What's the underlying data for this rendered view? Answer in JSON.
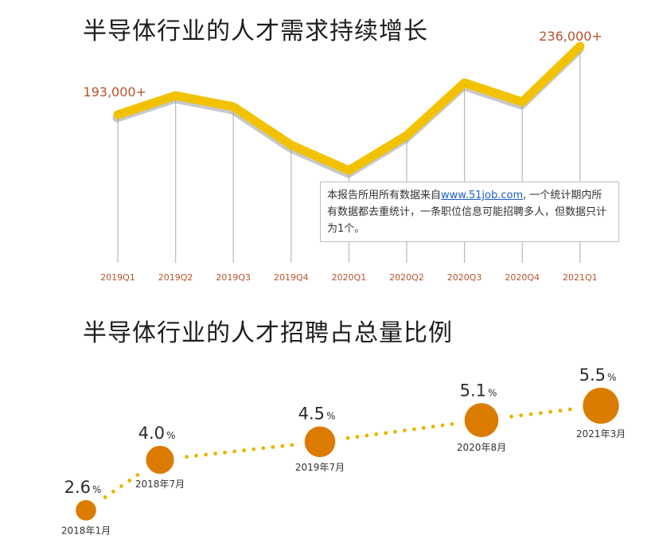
{
  "colors": {
    "line": "#f2c200",
    "line_shadow": "#9a9a9a",
    "label": "#b5532b",
    "dot": "#e8b500",
    "bubble": "#db7c00",
    "axis": "#bdbdbd"
  },
  "chart_data": [
    {
      "type": "line",
      "title": "半导体行业的人才需求持续增长",
      "categories": [
        "2019Q1",
        "2019Q2",
        "2019Q3",
        "2019Q4",
        "2020Q1",
        "2020Q2",
        "2020Q3",
        "2020Q4",
        "2021Q1"
      ],
      "values": [
        193000,
        205000,
        198000,
        174000,
        158000,
        180000,
        213000,
        201000,
        236000
      ],
      "ylim": [
        150000,
        240000
      ],
      "data_labels": {
        "first": "193,000+",
        "last": "236,000+"
      },
      "annotation": {
        "before": "本报告所用所有数据来自",
        "link": "www.51job.com",
        "after": ", 一个统计期内所有数据都去重统计，一条职位信息可能招聘多人，但数据只计为1个。"
      }
    },
    {
      "type": "scatter",
      "title": "半导体行业的人才招聘占总量比例",
      "points": [
        {
          "value": 2.6,
          "value_label": "2.6",
          "unit": "%",
          "date": "2018年1月"
        },
        {
          "value": 4.0,
          "value_label": "4.0",
          "unit": "%",
          "date": "2018年7月"
        },
        {
          "value": 4.5,
          "value_label": "4.5",
          "unit": "%",
          "date": "2019年7月"
        },
        {
          "value": 5.1,
          "value_label": "5.1",
          "unit": "%",
          "date": "2020年8月"
        },
        {
          "value": 5.5,
          "value_label": "5.5",
          "unit": "%",
          "date": "2021年3月"
        }
      ]
    }
  ]
}
